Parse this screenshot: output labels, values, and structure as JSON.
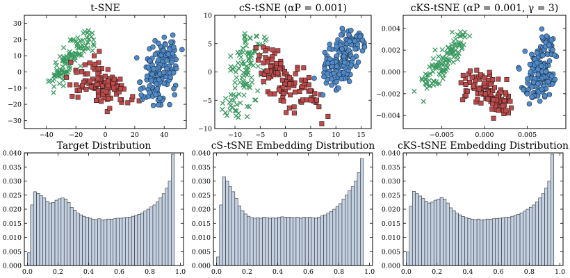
{
  "chart_data": [
    {
      "type": "scatter",
      "title": "t-SNE",
      "xlim": [
        -55,
        55
      ],
      "ylim": [
        -35,
        35
      ],
      "xticks": [
        -40,
        -20,
        0,
        20,
        40
      ],
      "yticks": [
        -30,
        -20,
        -10,
        0,
        10,
        20,
        30
      ],
      "xtick_labels": [
        "−40",
        "−20",
        "0",
        "20",
        "40"
      ],
      "ytick_labels": [
        "−30",
        "−20",
        "−10",
        "0",
        "10",
        "20",
        "30"
      ],
      "clusters": [
        {
          "marker": "x",
          "color": "#3a9a5f",
          "center": [
            -24,
            8
          ],
          "trend": [
            13,
            15
          ],
          "spread": 4,
          "n": 110
        },
        {
          "marker": "square",
          "color": "#c04a4a",
          "center": [
            -2,
            -8
          ],
          "trend": [
            12,
            -6
          ],
          "spread": 7,
          "n": 110
        },
        {
          "marker": "circle",
          "color": "#4f8ac9",
          "center": [
            37,
            0
          ],
          "trend": [
            4,
            15
          ],
          "spread": 5,
          "n": 160
        }
      ]
    },
    {
      "type": "scatter",
      "title": "cS-tSNE (αP = 0.001)",
      "xlim": [
        -14,
        17
      ],
      "ylim": [
        -10,
        10
      ],
      "xticks": [
        -10,
        -5,
        0,
        5,
        10,
        15
      ],
      "yticks": [
        -10,
        -5,
        0,
        5,
        10
      ],
      "xtick_labels": [
        "−10",
        "−5",
        "0",
        "5",
        "10",
        "15"
      ],
      "ytick_labels": [
        "−10",
        "−5",
        "0",
        "5",
        "10"
      ],
      "clusters": [
        {
          "marker": "x",
          "color": "#3a9a5f",
          "center": [
            -8.5,
            -1
          ],
          "trend": [
            1.5,
            7
          ],
          "spread": 1.5,
          "n": 110
        },
        {
          "marker": "square",
          "color": "#c04a4a",
          "center": [
            0,
            -1
          ],
          "trend": [
            5,
            -4
          ],
          "spread": 2,
          "n": 110
        },
        {
          "marker": "circle",
          "color": "#4f8ac9",
          "center": [
            11,
            2
          ],
          "trend": [
            2,
            4
          ],
          "spread": 1.6,
          "n": 160
        }
      ]
    },
    {
      "type": "scatter",
      "title": "cKS-tSNE (αP = 0.001, γ = 3)",
      "xlim": [
        -0.0095,
        0.0095
      ],
      "ylim": [
        -0.0052,
        0.0052
      ],
      "xticks": [
        -0.005,
        0,
        0.005
      ],
      "yticks": [
        -0.004,
        -0.002,
        0,
        0.002,
        0.004
      ],
      "xtick_labels": [
        "−0.005",
        "0.000",
        "0.005"
      ],
      "ytick_labels": [
        "−0.004",
        "−0.002",
        "0.000",
        "0.002",
        "0.004"
      ],
      "clusters": [
        {
          "marker": "x",
          "color": "#3a9a5f",
          "center": [
            -0.0045,
            0.0012
          ],
          "trend": [
            0.0022,
            0.0025
          ],
          "spread": 0.0006,
          "n": 110
        },
        {
          "marker": "square",
          "color": "#c04a4a",
          "center": [
            0.0002,
            -0.0018
          ],
          "trend": [
            0.0019,
            -0.0012
          ],
          "spread": 0.0009,
          "n": 110
        },
        {
          "marker": "circle",
          "color": "#4f8ac9",
          "center": [
            0.0066,
            0.0003
          ],
          "trend": [
            0.0005,
            0.0025
          ],
          "spread": 0.0008,
          "n": 160
        }
      ]
    },
    {
      "type": "bar",
      "title": "Target Distribution",
      "xlim": [
        -0.02,
        1.02
      ],
      "ylim": [
        0,
        0.04
      ],
      "xticks": [
        0,
        0.2,
        0.4,
        0.6,
        0.8,
        1.0
      ],
      "yticks": [
        0,
        0.005,
        0.01,
        0.015,
        0.02,
        0.025,
        0.03,
        0.035,
        0.04
      ],
      "xtick_labels": [
        "0.0",
        "0.2",
        "0.4",
        "0.6",
        "0.8",
        "1.0"
      ],
      "ytick_labels": [
        "0.000",
        "0.005",
        "0.010",
        "0.015",
        "0.020",
        "0.025",
        "0.030",
        "0.035",
        "0.040"
      ],
      "bin_width": 0.02,
      "values": [
        0.0045,
        0.0215,
        0.0262,
        0.0256,
        0.0248,
        0.024,
        0.0228,
        0.0222,
        0.0224,
        0.0232,
        0.0237,
        0.024,
        0.0236,
        0.0224,
        0.0206,
        0.0196,
        0.0186,
        0.018,
        0.0175,
        0.0172,
        0.0168,
        0.0164,
        0.0163,
        0.0166,
        0.0162,
        0.0163,
        0.0165,
        0.0164,
        0.0166,
        0.0168,
        0.0168,
        0.017,
        0.0171,
        0.0172,
        0.0175,
        0.0178,
        0.0182,
        0.0187,
        0.0194,
        0.02,
        0.0208,
        0.0215,
        0.0226,
        0.024,
        0.0255,
        0.0275,
        0.03,
        0.0395
      ]
    },
    {
      "type": "bar",
      "title": "cS-tSNE Embedding Distribution",
      "xlim": [
        -0.02,
        1.02
      ],
      "ylim": [
        0,
        0.04
      ],
      "xticks": [
        0,
        0.2,
        0.4,
        0.6,
        0.8,
        1.0
      ],
      "yticks": [
        0,
        0.005,
        0.01,
        0.015,
        0.02,
        0.025,
        0.03,
        0.035,
        0.04
      ],
      "xtick_labels": [
        "0.0",
        "0.2",
        "0.4",
        "0.6",
        "0.8",
        "1.0"
      ],
      "ytick_labels": [
        "0.000",
        "0.005",
        "0.010",
        "0.015",
        "0.020",
        "0.025",
        "0.030",
        "0.035",
        "0.040"
      ],
      "bin_width": 0.02,
      "values": [
        0.003,
        0.0215,
        0.0315,
        0.03,
        0.028,
        0.0262,
        0.0238,
        0.0212,
        0.0195,
        0.0183,
        0.0175,
        0.017,
        0.0168,
        0.017,
        0.0168,
        0.0172,
        0.017,
        0.0168,
        0.017,
        0.0168,
        0.0172,
        0.0173,
        0.0172,
        0.0172,
        0.0171,
        0.017,
        0.0172,
        0.0168,
        0.0172,
        0.017,
        0.0172,
        0.017,
        0.0168,
        0.0172,
        0.0176,
        0.018,
        0.0186,
        0.0192,
        0.02,
        0.021,
        0.022,
        0.0236,
        0.025,
        0.0266,
        0.028,
        0.03,
        0.033,
        0.038
      ]
    },
    {
      "type": "bar",
      "title": "cKS-tSNE Embedding Distribution",
      "xlim": [
        -0.02,
        1.02
      ],
      "ylim": [
        0,
        0.04
      ],
      "xticks": [
        0,
        0.2,
        0.4,
        0.6,
        0.8,
        1.0
      ],
      "yticks": [
        0,
        0.005,
        0.01,
        0.015,
        0.02,
        0.025,
        0.03,
        0.035,
        0.04
      ],
      "xtick_labels": [
        "0.0",
        "0.2",
        "0.4",
        "0.6",
        "0.8",
        "1.0"
      ],
      "ytick_labels": [
        "0.000",
        "0.005",
        "0.010",
        "0.015",
        "0.020",
        "0.025",
        "0.030",
        "0.035",
        "0.040"
      ],
      "bin_width": 0.02,
      "values": [
        0.0048,
        0.021,
        0.0263,
        0.0255,
        0.0247,
        0.0238,
        0.0228,
        0.0222,
        0.0225,
        0.0232,
        0.0236,
        0.0241,
        0.0236,
        0.0222,
        0.0205,
        0.0195,
        0.0186,
        0.018,
        0.0174,
        0.017,
        0.0167,
        0.0164,
        0.0163,
        0.0165,
        0.0162,
        0.0163,
        0.0165,
        0.0164,
        0.0166,
        0.0167,
        0.0168,
        0.017,
        0.0171,
        0.0172,
        0.0175,
        0.0178,
        0.0182,
        0.0187,
        0.0193,
        0.02,
        0.0207,
        0.0215,
        0.0226,
        0.024,
        0.0255,
        0.0275,
        0.03,
        0.0395
      ]
    }
  ],
  "style": {
    "bar_fill": "#c4d1e3",
    "bar_edge": "#2b2b2b",
    "green": "#3a9a5f",
    "red": "#c04a4a",
    "blue": "#4f8ac9"
  }
}
